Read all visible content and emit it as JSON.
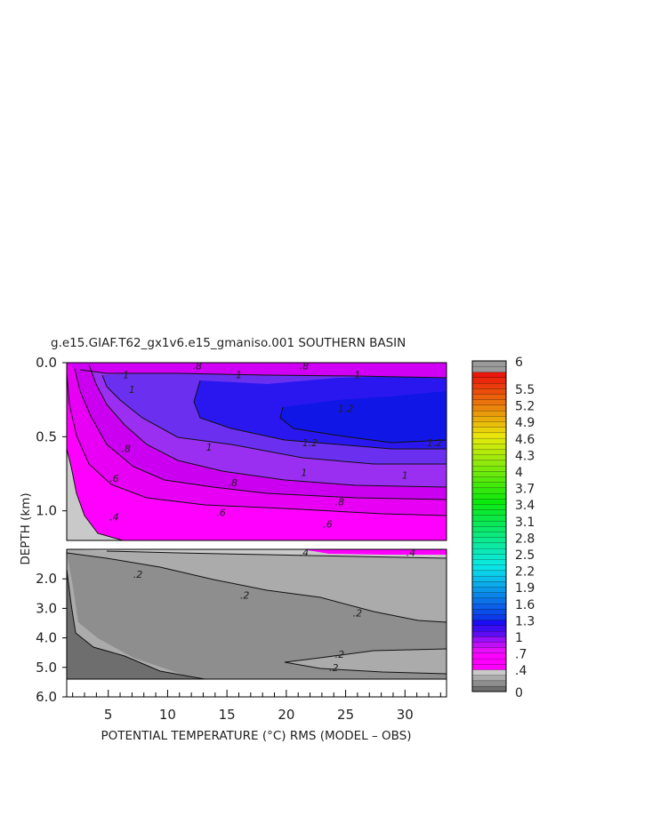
{
  "chart_data": {
    "type": "heatmap",
    "title": "g.e15.GIAF.T62_gx1v6.e15_gmaniso.001 SOUTHERN BASIN",
    "xlabel": "POTENTIAL TEMPERATURE (°C) RMS (MODEL – OBS)",
    "ylabel": "DEPTH (km)",
    "xlim": [
      1.5,
      33.5
    ],
    "x_ticks": [
      "5",
      "10",
      "15",
      "20",
      "25",
      "30"
    ],
    "upper_panel": {
      "ylim": [
        0.0,
        1.2
      ],
      "y_ticks": [
        "0.0",
        "0.5",
        "1.0"
      ],
      "contour_labels": [
        {
          "text": ".8",
          "x": 12.5,
          "y": 0.02
        },
        {
          "text": ".8",
          "x": 21.5,
          "y": 0.02
        },
        {
          "text": "1",
          "x": 6.5,
          "y": 0.08
        },
        {
          "text": "1",
          "x": 16.0,
          "y": 0.08
        },
        {
          "text": "1",
          "x": 26.0,
          "y": 0.08
        },
        {
          "text": "1",
          "x": 7.0,
          "y": 0.18
        },
        {
          "text": "1.2",
          "x": 25.0,
          "y": 0.31
        },
        {
          "text": "1.2",
          "x": 22.0,
          "y": 0.54
        },
        {
          "text": "1.2",
          "x": 32.5,
          "y": 0.54
        },
        {
          "text": "1",
          "x": 13.5,
          "y": 0.57
        },
        {
          "text": ".8",
          "x": 6.5,
          "y": 0.58
        },
        {
          "text": "1",
          "x": 21.5,
          "y": 0.74
        },
        {
          "text": "1",
          "x": 30.0,
          "y": 0.76
        },
        {
          "text": ".6",
          "x": 5.5,
          "y": 0.78
        },
        {
          "text": ".8",
          "x": 15.5,
          "y": 0.81
        },
        {
          "text": ".8",
          "x": 24.5,
          "y": 0.94
        },
        {
          "text": ".6",
          "x": 14.5,
          "y": 1.01
        },
        {
          "text": ".6",
          "x": 23.5,
          "y": 1.09
        },
        {
          "text": ".4",
          "x": 5.5,
          "y": 1.04
        }
      ]
    },
    "lower_panel": {
      "ylim": [
        1.0,
        6.0
      ],
      "y_ticks": [
        "2.0",
        "3.0",
        "4.0",
        "5.0",
        "6.0"
      ],
      "contour_labels": [
        {
          "text": ".4",
          "x": 21.5,
          "y": 1.1
        },
        {
          "text": ".4",
          "x": 30.5,
          "y": 1.1
        },
        {
          "text": ".2",
          "x": 7.5,
          "y": 1.85
        },
        {
          "text": ".2",
          "x": 16.5,
          "y": 2.55
        },
        {
          "text": ".2",
          "x": 26.0,
          "y": 3.15
        },
        {
          "text": ".2",
          "x": 24.5,
          "y": 4.55
        },
        {
          "text": ".2",
          "x": 24.0,
          "y": 5.0
        }
      ]
    },
    "colorbar": {
      "min": 0,
      "max": 6,
      "labels": [
        "6",
        "5.5",
        "5.2",
        "4.9",
        "4.6",
        "4.3",
        "4",
        "3.7",
        "3.4",
        "3.1",
        "2.8",
        "2.5",
        "2.2",
        "1.9",
        "1.6",
        "1.3",
        "1",
        ".7",
        ".4",
        "0"
      ],
      "label_values": [
        6,
        5.5,
        5.2,
        4.9,
        4.6,
        4.3,
        4,
        3.7,
        3.4,
        3.1,
        2.8,
        2.5,
        2.2,
        1.9,
        1.6,
        1.3,
        1,
        0.7,
        0.4,
        0
      ]
    }
  }
}
